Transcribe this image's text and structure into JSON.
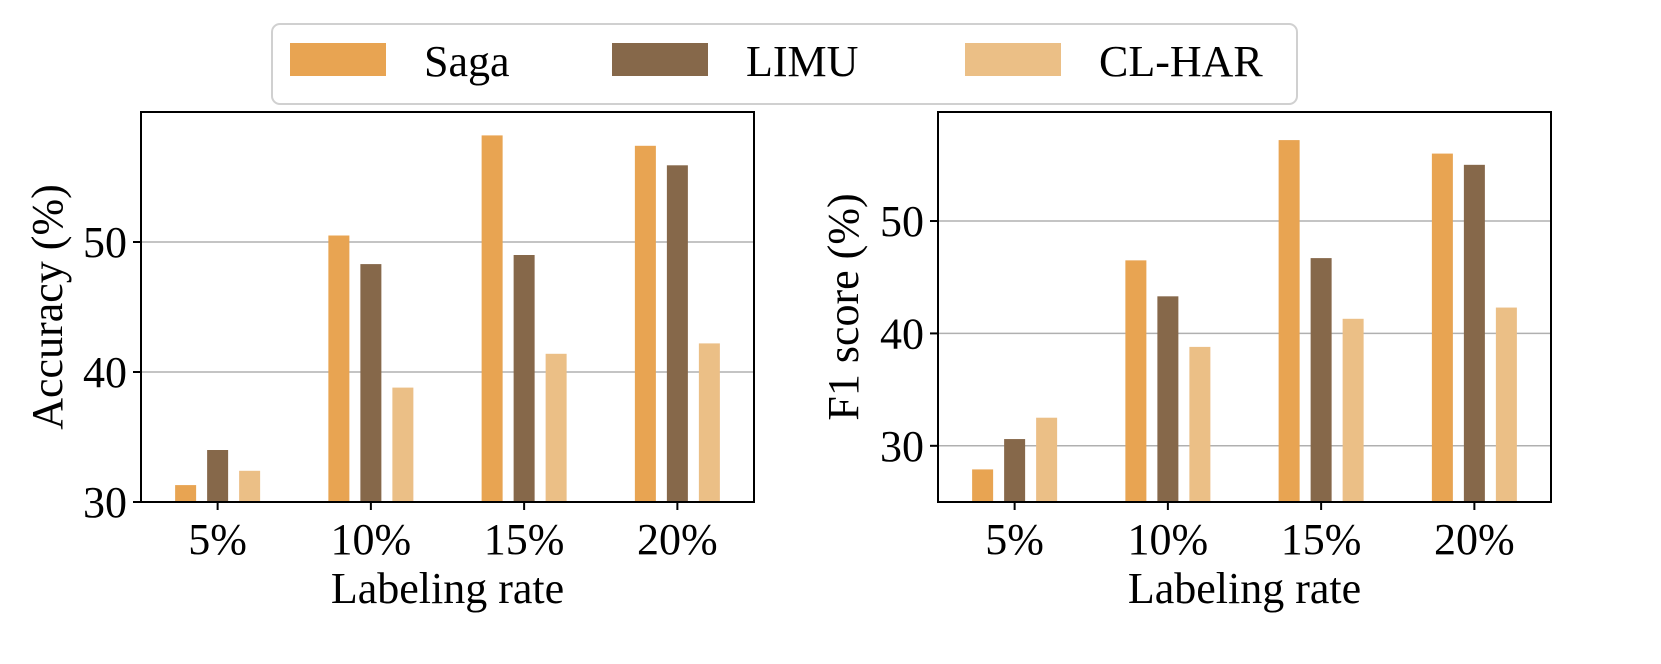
{
  "legend": {
    "entries": [
      {
        "label": "Saga",
        "color": "#E8A452"
      },
      {
        "label": "LIMU",
        "color": "#86684A"
      },
      {
        "label": "CL-HAR",
        "color": "#EBBF86"
      }
    ],
    "placement": "top-center"
  },
  "chart_data": [
    {
      "type": "bar",
      "title": "",
      "xlabel": "Labeling rate",
      "ylabel": "Accuracy (%)",
      "categories": [
        "5%",
        "10%",
        "15%",
        "20%"
      ],
      "ylim": [
        30,
        60
      ],
      "yticks": [
        30,
        40,
        50
      ],
      "ytick_labels": [
        "30",
        "40",
        "50"
      ],
      "grid": "y",
      "series": [
        {
          "name": "Saga",
          "values": [
            31.3,
            50.5,
            58.2,
            57.4
          ]
        },
        {
          "name": "LIMU",
          "values": [
            34.0,
            48.3,
            49.0,
            55.9
          ]
        },
        {
          "name": "CL-HAR",
          "values": [
            32.4,
            38.8,
            41.4,
            42.2
          ]
        }
      ]
    },
    {
      "type": "bar",
      "title": "",
      "xlabel": "Labeling rate",
      "ylabel": "F1 score (%)",
      "categories": [
        "5%",
        "10%",
        "15%",
        "20%"
      ],
      "ylim": [
        25,
        59.7
      ],
      "yticks": [
        30,
        40,
        50
      ],
      "ytick_labels": [
        "30",
        "40",
        "50"
      ],
      "grid": "y",
      "series": [
        {
          "name": "Saga",
          "values": [
            27.9,
            46.5,
            57.2,
            56.0
          ]
        },
        {
          "name": "LIMU",
          "values": [
            30.6,
            43.3,
            46.7,
            55.0
          ]
        },
        {
          "name": "CL-HAR",
          "values": [
            32.5,
            38.8,
            41.3,
            42.3
          ]
        }
      ]
    }
  ]
}
